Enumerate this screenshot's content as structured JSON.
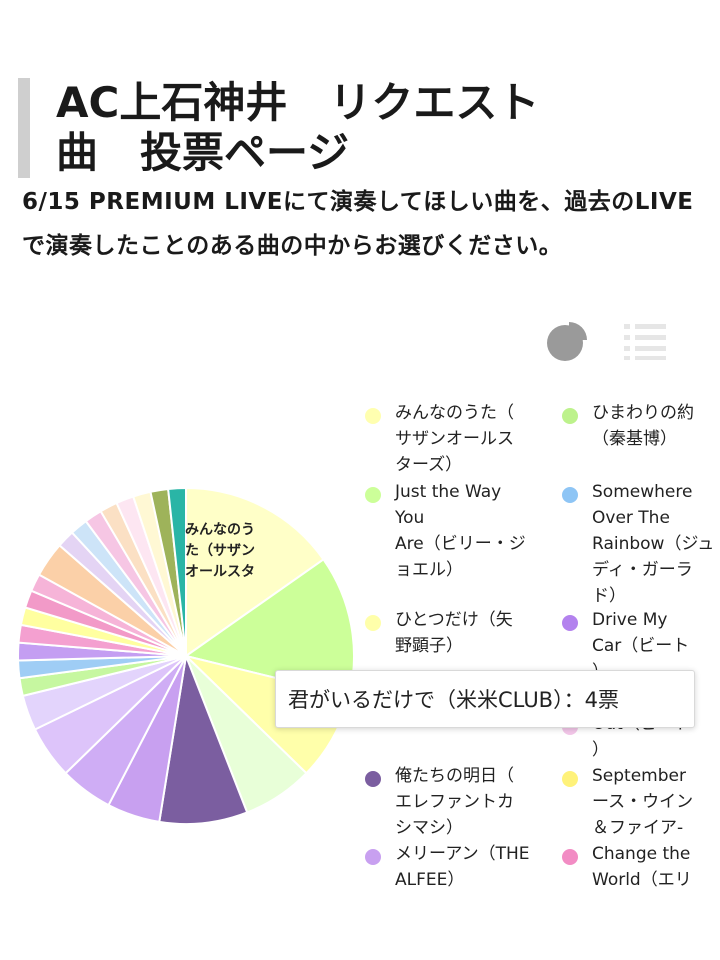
{
  "page": {
    "title": "AC上石神井　リクエスト\n曲　投票ページ",
    "intro": "6/15 PREMIUM LIVEにて演奏してほしい曲を、過去のLIVEで演奏したことのある曲の中からお選びください。"
  },
  "view_toggle": {
    "pie_icon": "pie-chart-icon",
    "list_icon": "list-icon"
  },
  "chart_data": {
    "type": "pie",
    "slice_label": "みんなのう\nた（サザン\nオールスタ",
    "series": [
      {
        "name": "みんなのうた（サザンオールスターズ）",
        "value": 9,
        "color": "#ffffc8"
      },
      {
        "name": "Just the Way You Are（ビリー・ジョエル）",
        "value": 8,
        "color": "#ccff99"
      },
      {
        "name": "ひとつだけ（矢野顕子）",
        "value": 5,
        "color": "#ffffaa"
      },
      {
        "name": "君がいるだけで（米米CLUB）",
        "value": 4,
        "color": "#e8ffd8"
      },
      {
        "name": "俺たちの明日（エレファントカシマシ）",
        "value": 5,
        "color": "#7b5ea0"
      },
      {
        "name": "メリーアン（THE ALFEE）",
        "value": 3,
        "color": "#c8a0f0"
      },
      {
        "name": "",
        "value": 3,
        "color": "#cfadf5"
      },
      {
        "name": "",
        "value": 3,
        "color": "#ddc4fa"
      },
      {
        "name": "",
        "value": 2,
        "color": "#e3d4fc"
      },
      {
        "name": "",
        "value": 1,
        "color": "#c6f7a0"
      },
      {
        "name": "",
        "value": 1,
        "color": "#9fcdf5"
      },
      {
        "name": "",
        "value": 1,
        "color": "#c49ef2"
      },
      {
        "name": "",
        "value": 1,
        "color": "#f4a0d0"
      },
      {
        "name": "",
        "value": 1,
        "color": "#ffffa0"
      },
      {
        "name": "",
        "value": 1,
        "color": "#f29ac8"
      },
      {
        "name": "",
        "value": 1,
        "color": "#f6b4d8"
      },
      {
        "name": "",
        "value": 2,
        "color": "#fbd0a8"
      },
      {
        "name": "",
        "value": 1,
        "color": "#e4d4f4"
      },
      {
        "name": "",
        "value": 1,
        "color": "#cde4f8"
      },
      {
        "name": "",
        "value": 1,
        "color": "#f6c6e4"
      },
      {
        "name": "",
        "value": 1,
        "color": "#fbe0c4"
      },
      {
        "name": "",
        "value": 1,
        "color": "#fde6f2"
      },
      {
        "name": "",
        "value": 1,
        "color": "#fff8d4"
      },
      {
        "name": "",
        "value": 1,
        "color": "#9eb35a"
      },
      {
        "name": "",
        "value": 1,
        "color": "#2ab5a6"
      }
    ]
  },
  "legend": {
    "items": [
      {
        "label": "みんなのうた（\nサザンオールス\nターズ）",
        "color": "#ffffb0"
      },
      {
        "label": "ひまわりの約\n（秦基博）",
        "color": "#bdf28c"
      },
      {
        "label": "Just the Way\nYou\nAre（ビリー・ジ\nョエル）",
        "color": "#ccff99"
      },
      {
        "label": "Somewhere\nOver The\nRainbow（ジュ\nディ・ガーラ\nド）",
        "color": "#8ec5f5"
      },
      {
        "label": "ひとつだけ（矢\n野顕子）",
        "color": "#ffffaa"
      },
      {
        "label": "Drive My\nCar（ビート\n）",
        "color": "#b382ee"
      },
      {
        "label": "",
        "color": "#e8ffd8"
      },
      {
        "label": "Out（ビート\n）",
        "color": "#f2c6e8"
      },
      {
        "label": "俺たちの明日（\nエレファントカ\nシマシ）",
        "color": "#7b5ea0"
      },
      {
        "label": "September\nース・ウイン\n＆ファイア-",
        "color": "#fff27a"
      },
      {
        "label": "メリーアン（THE\nALFEE）",
        "color": "#c8a0f0"
      },
      {
        "label": "Change the\nWorld（エリ",
        "color": "#f28cc4"
      }
    ]
  },
  "tooltip": {
    "text": "君がいるだけで（米米CLUB）：4票"
  }
}
